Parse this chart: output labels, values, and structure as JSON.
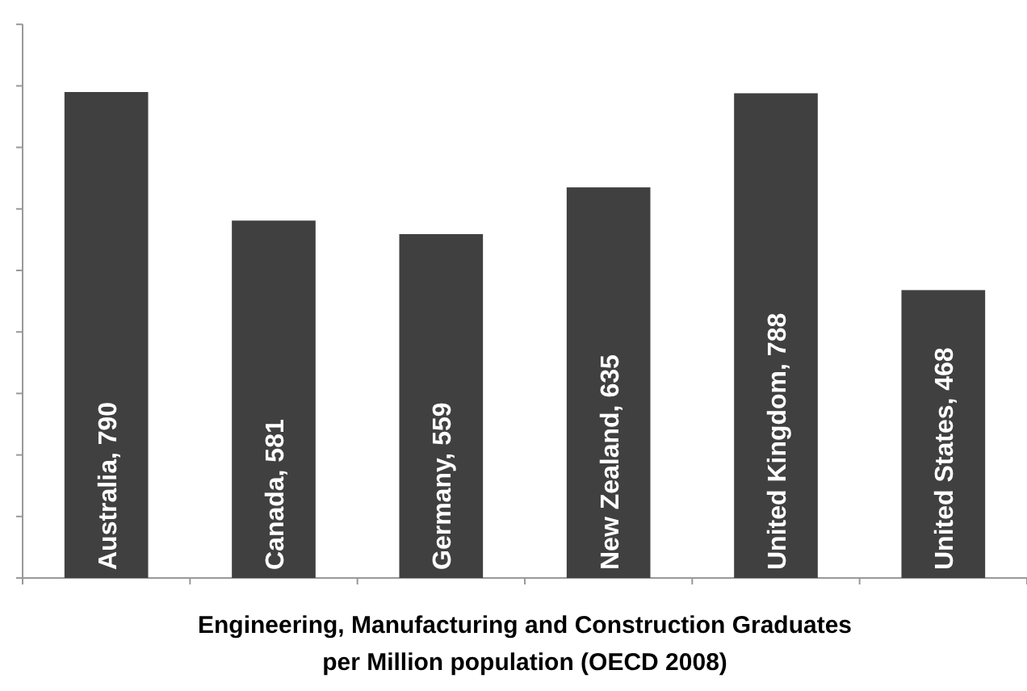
{
  "chart_data": {
    "type": "bar",
    "title": "Engineering, Manufacturing and Construction Graduates per Million population (OECD 2008)",
    "categories": [
      "Australia",
      "Canada",
      "Germany",
      "New Zealand",
      "United Kingdom",
      "United States"
    ],
    "values": [
      790,
      581,
      559,
      635,
      788,
      468
    ],
    "value_labels": [
      ", 790",
      ", 581",
      ", 559",
      ", 635",
      ", 788",
      ", 468"
    ],
    "color": "#404040"
  }
}
